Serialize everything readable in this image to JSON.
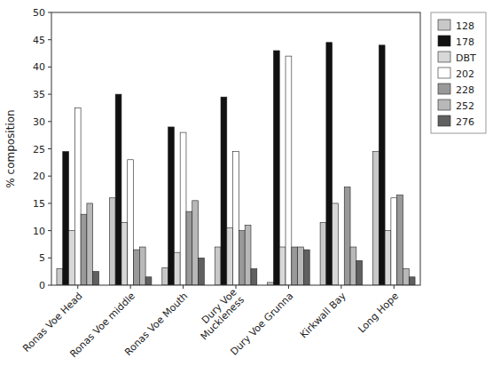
{
  "chart_data": {
    "type": "bar",
    "categories": [
      "Ronas Voe Head",
      "Ronas Voe middle",
      "Ronas Voe Mouth",
      "Dury Voe\nMuckleness",
      "Dury Voe Grunna",
      "Kirkwall Bay",
      "Long Hope"
    ],
    "series": [
      {
        "name": "128",
        "color": "#c8c8c8",
        "values": [
          3.0,
          16.0,
          3.2,
          7.0,
          0.5,
          11.5,
          24.5
        ]
      },
      {
        "name": "178",
        "color": "#111111",
        "values": [
          24.5,
          35.0,
          29.0,
          34.5,
          43.0,
          44.5,
          44.0
        ]
      },
      {
        "name": "DBT",
        "color": "#d8d8d8",
        "values": [
          10.0,
          11.5,
          6.0,
          10.5,
          7.0,
          15.0,
          10.0
        ]
      },
      {
        "name": "202",
        "color": "#ffffff",
        "values": [
          32.5,
          23.0,
          28.0,
          24.5,
          42.0,
          0.0,
          16.0
        ]
      },
      {
        "name": "228",
        "color": "#999999",
        "values": [
          13.0,
          6.5,
          13.5,
          10.0,
          7.0,
          18.0,
          16.5
        ]
      },
      {
        "name": "252",
        "color": "#b8b8b8",
        "values": [
          15.0,
          7.0,
          15.5,
          11.0,
          7.0,
          7.0,
          3.0
        ]
      },
      {
        "name": "276",
        "color": "#606060",
        "values": [
          2.5,
          1.5,
          5.0,
          3.0,
          6.5,
          4.5,
          1.5
        ]
      }
    ],
    "ylabel": "% composition",
    "ylim": [
      0,
      50
    ],
    "yticks": [
      0,
      5,
      10,
      15,
      20,
      25,
      30,
      35,
      40,
      45,
      50
    ],
    "grid": false,
    "legend": "right"
  }
}
